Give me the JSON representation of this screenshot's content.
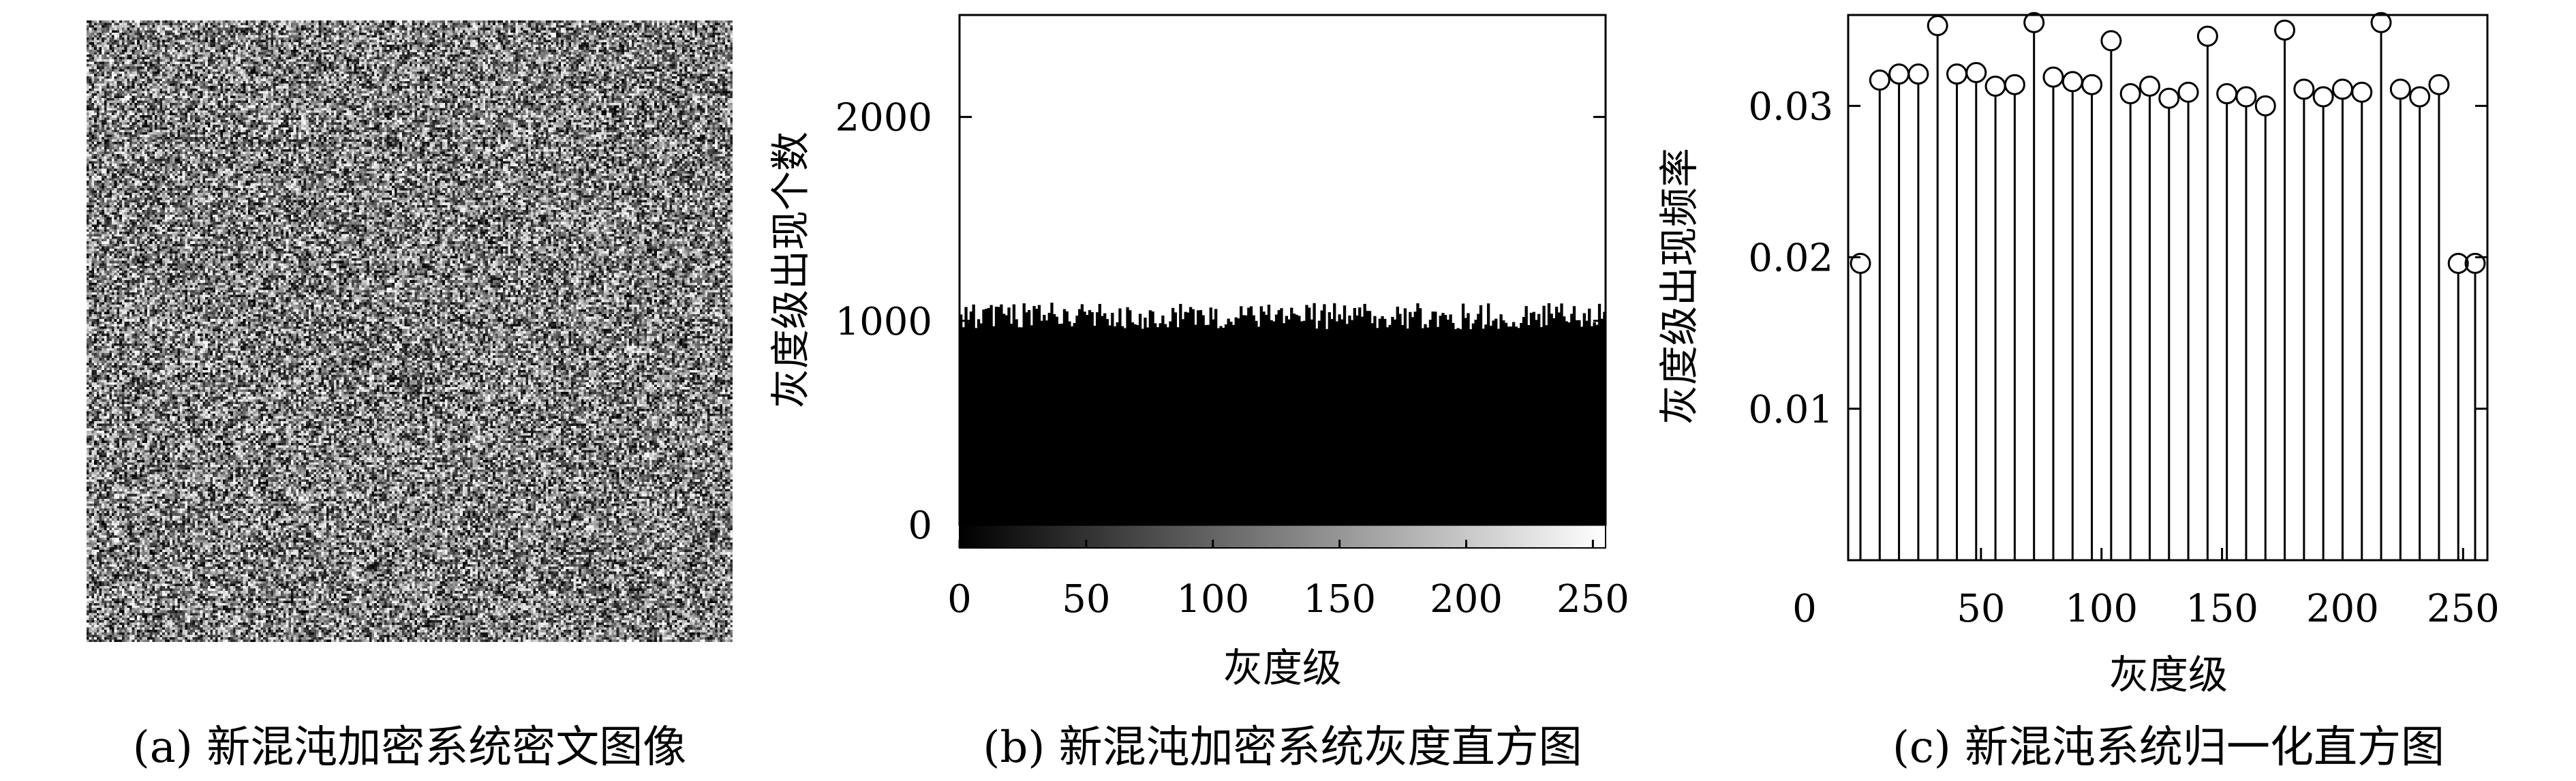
{
  "panel_a": {
    "caption": "(a) 新混沌加密系统密文图像"
  },
  "panel_b": {
    "caption": "(b) 新混沌加密系统灰度直方图",
    "xlabel": "灰度级",
    "ylabel": "灰度级出现个数"
  },
  "panel_c": {
    "caption": "(c) 新混沌系统归一化直方图",
    "xlabel": "灰度级",
    "ylabel": "灰度级出现频率"
  },
  "chart_data": [
    {
      "type": "image",
      "description_values": {
        "kind": "noise",
        "levels": 256
      }
    },
    {
      "type": "bar",
      "xlabel": "灰度级",
      "ylabel": "灰度级出现个数",
      "xlim": [
        0,
        255
      ],
      "ylim": [
        0,
        2500
      ],
      "xticks": [
        0,
        50,
        100,
        150,
        200,
        250
      ],
      "yticks": [
        0,
        1000,
        2000
      ],
      "bins": 256,
      "value_mean": 1024,
      "value_range": [
        960,
        1090
      ],
      "colorbar": "gray 0-255"
    },
    {
      "type": "stem",
      "xlabel": "灰度级",
      "ylabel": "灰度级出现频率",
      "xlim": [
        0,
        255
      ],
      "ylim": [
        0,
        0.036
      ],
      "xticks": [
        0,
        50,
        100,
        150,
        200,
        250
      ],
      "yticks": [
        0.01,
        0.02,
        0.03
      ],
      "x": [
        0,
        8,
        16,
        24,
        32,
        40,
        48,
        56,
        64,
        72,
        80,
        88,
        96,
        104,
        112,
        120,
        128,
        136,
        144,
        152,
        160,
        168,
        176,
        184,
        192,
        200,
        208,
        216,
        224,
        232,
        240,
        248,
        255
      ],
      "values": [
        0.0196,
        0.0317,
        0.0321,
        0.0321,
        0.0353,
        0.0321,
        0.0322,
        0.0313,
        0.0314,
        0.0355,
        0.0319,
        0.0316,
        0.0314,
        0.0343,
        0.0308,
        0.0313,
        0.0305,
        0.0309,
        0.0346,
        0.0308,
        0.0306,
        0.03,
        0.035,
        0.0311,
        0.0306,
        0.0311,
        0.0309,
        0.0355,
        0.0311,
        0.0306,
        0.0314,
        0.0196,
        0.0196
      ]
    }
  ]
}
